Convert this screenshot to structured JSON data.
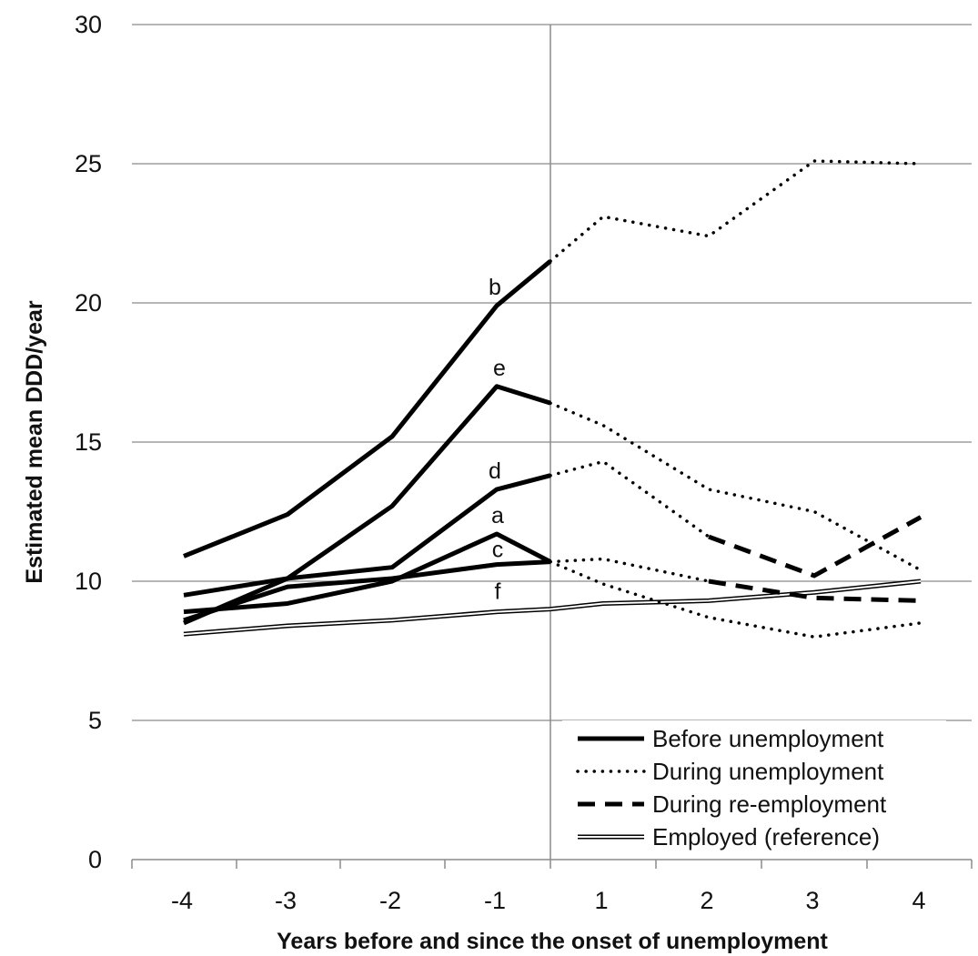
{
  "chart_data": {
    "type": "line",
    "xlabel": "Years before and since the onset of unemployment",
    "ylabel": "Estimated mean DDD/year",
    "ylim": [
      0,
      30
    ],
    "yticks": [
      0,
      5,
      10,
      15,
      20,
      25,
      30
    ],
    "ytick_labels": [
      "0",
      "5",
      "10",
      "15",
      "20",
      "25",
      "30"
    ],
    "categories": [
      "-4",
      "-3",
      "-2",
      "-1",
      "1",
      "2",
      "3",
      "4"
    ],
    "grid": "horizontal",
    "onset_divider": "between -1 and 1",
    "legend_placement": "bottom-right",
    "legend": [
      {
        "label": "Before unemployment",
        "style": "solid-thick"
      },
      {
        "label": "During unemployment",
        "style": "dotted"
      },
      {
        "label": "During re-employment",
        "style": "dashed"
      },
      {
        "label": "Employed (reference)",
        "style": "double-thin"
      }
    ],
    "series": [
      {
        "letter": "b",
        "segments": [
          {
            "style": "solid-thick",
            "points": [
              [
                "-4",
                10.9
              ],
              [
                "-3",
                12.4
              ],
              [
                "-2",
                15.2
              ],
              [
                "-1",
                19.9
              ],
              [
                "0",
                21.5
              ]
            ]
          },
          {
            "style": "dotted",
            "points": [
              [
                "0",
                21.5
              ],
              [
                "1",
                23.1
              ],
              [
                "2",
                22.4
              ],
              [
                "3",
                25.1
              ],
              [
                "4",
                25.0
              ]
            ]
          }
        ]
      },
      {
        "letter": "e",
        "segments": [
          {
            "style": "solid-thick",
            "points": [
              [
                "-4",
                8.5
              ],
              [
                "-3",
                10.1
              ],
              [
                "-2",
                12.7
              ],
              [
                "-1",
                17.0
              ],
              [
                "0",
                16.4
              ]
            ]
          },
          {
            "style": "dotted",
            "points": [
              [
                "0",
                16.4
              ],
              [
                "1",
                15.6
              ],
              [
                "2",
                13.3
              ],
              [
                "3",
                12.5
              ],
              [
                "4",
                10.4
              ]
            ]
          }
        ]
      },
      {
        "letter": "d",
        "segments": [
          {
            "style": "solid-thick",
            "points": [
              [
                "-4",
                9.5
              ],
              [
                "-3",
                10.1
              ],
              [
                "-2",
                10.5
              ],
              [
                "-1",
                13.3
              ],
              [
                "0",
                13.8
              ]
            ]
          },
          {
            "style": "dotted",
            "points": [
              [
                "0",
                13.8
              ],
              [
                "1",
                14.3
              ],
              [
                "2",
                11.6
              ]
            ]
          },
          {
            "style": "dashed",
            "points": [
              [
                "2",
                11.6
              ],
              [
                "3",
                10.2
              ],
              [
                "4",
                12.3
              ]
            ]
          }
        ]
      },
      {
        "letter": "a",
        "segments": [
          {
            "style": "solid-thick",
            "points": [
              [
                "-4",
                8.9
              ],
              [
                "-3",
                9.2
              ],
              [
                "-2",
                10.0
              ],
              [
                "-1",
                11.7
              ],
              [
                "0",
                10.7
              ]
            ]
          },
          {
            "style": "dotted",
            "points": [
              [
                "0",
                10.7
              ],
              [
                "1",
                9.9
              ],
              [
                "2",
                8.7
              ],
              [
                "3",
                8.0
              ],
              [
                "4",
                8.5
              ]
            ]
          }
        ]
      },
      {
        "letter": "c",
        "segments": [
          {
            "style": "solid-thick",
            "points": [
              [
                "-4",
                8.6
              ],
              [
                "-3",
                9.8
              ],
              [
                "-2",
                10.1
              ],
              [
                "-1",
                10.6
              ],
              [
                "0",
                10.7
              ]
            ]
          },
          {
            "style": "dotted",
            "points": [
              [
                "0",
                10.7
              ],
              [
                "1",
                10.8
              ],
              [
                "2",
                10.0
              ]
            ]
          },
          {
            "style": "dashed",
            "points": [
              [
                "2",
                10.0
              ],
              [
                "3",
                9.4
              ],
              [
                "4",
                9.3
              ]
            ]
          }
        ]
      },
      {
        "letter": "f",
        "segments": [
          {
            "style": "double-thin",
            "points": [
              [
                "-4",
                8.1
              ],
              [
                "-3",
                8.4
              ],
              [
                "-2",
                8.6
              ],
              [
                "-1",
                8.9
              ],
              [
                "0",
                9.0
              ],
              [
                "1",
                9.2
              ],
              [
                "2",
                9.3
              ],
              [
                "3",
                9.6
              ],
              [
                "4",
                10.0
              ]
            ]
          }
        ]
      }
    ]
  }
}
